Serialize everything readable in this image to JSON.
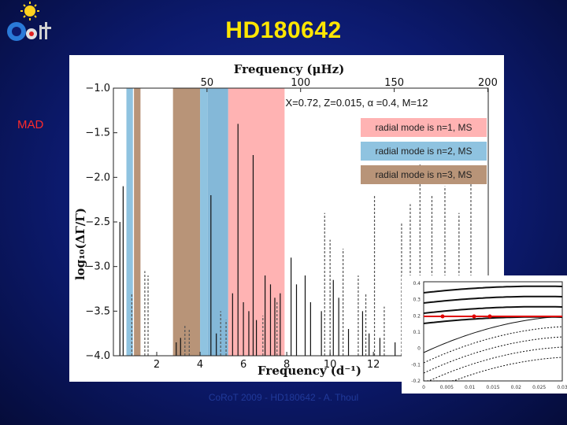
{
  "slide": {
    "title": "HD180642",
    "side_label": "MAD",
    "footer": "CoRoT 2009 - HD180642 - A. Thoul"
  },
  "colors": {
    "title": "#ffe600",
    "side_label": "#ff2a2a",
    "band_tan": "#b89478",
    "band_blue": "#8fc3e0",
    "band_pink": "#ffb3b3",
    "inset_line": "#e00000"
  },
  "chart_data": {
    "type": "bar",
    "annotation": "X=0.72, Z=0.015, α  =0.4, M=12",
    "top_axis": {
      "label": "Frequency (μHz)",
      "ticks": [
        50,
        100,
        150,
        200
      ]
    },
    "xlabel": "Frequency (d⁻¹)",
    "ylabel": "log₁₀(ΔΓ/Γ)",
    "xlim": [
      0,
      17.3
    ],
    "ylim": [
      -4.0,
      -1.0
    ],
    "x_ticks": [
      2,
      4,
      6,
      8,
      10,
      12
    ],
    "y_ticks": [
      -1.0,
      -1.5,
      -2.0,
      -2.5,
      -3.0,
      -3.5,
      -4.0
    ],
    "legend": [
      {
        "label": "radial mode is n=1, MS",
        "color": "#ffb3b3"
      },
      {
        "label": "radial mode is n=2, MS",
        "color": "#8fc3e0"
      },
      {
        "label": "radial mode is n=3, MS",
        "color": "#b89478"
      }
    ],
    "bands": [
      {
        "x0": 0.6,
        "x1": 0.9,
        "color": "#8fc3e0"
      },
      {
        "x0": 0.95,
        "x1": 1.25,
        "color": "#b89478"
      },
      {
        "x0": 2.75,
        "x1": 4.0,
        "color": "#b89478"
      },
      {
        "x0": 4.0,
        "x1": 4.35,
        "color": "#8fc3e0"
      },
      {
        "x0": 4.35,
        "x1": 5.3,
        "color": "#84b8d8"
      },
      {
        "x0": 5.3,
        "x1": 7.9,
        "color": "#ffb3b3"
      }
    ],
    "solid_lines": [
      {
        "x": 0.3,
        "y": -2.5
      },
      {
        "x": 0.45,
        "y": -2.1
      },
      {
        "x": 2.9,
        "y": -3.85
      },
      {
        "x": 3.1,
        "y": -3.8
      },
      {
        "x": 4.5,
        "y": -2.2
      },
      {
        "x": 4.75,
        "y": -3.75
      },
      {
        "x": 5.5,
        "y": -3.3
      },
      {
        "x": 5.75,
        "y": -1.4
      },
      {
        "x": 6.0,
        "y": -3.4
      },
      {
        "x": 6.25,
        "y": -3.5
      },
      {
        "x": 6.45,
        "y": -1.75
      },
      {
        "x": 6.6,
        "y": -3.6
      },
      {
        "x": 7.0,
        "y": -3.1
      },
      {
        "x": 7.25,
        "y": -3.2
      },
      {
        "x": 7.45,
        "y": -3.35
      },
      {
        "x": 7.7,
        "y": -3.3
      },
      {
        "x": 8.2,
        "y": -2.9
      },
      {
        "x": 8.45,
        "y": -3.2
      },
      {
        "x": 8.85,
        "y": -3.1
      },
      {
        "x": 9.1,
        "y": -3.4
      },
      {
        "x": 9.6,
        "y": -3.5
      },
      {
        "x": 10.15,
        "y": -3.15
      },
      {
        "x": 10.4,
        "y": -3.35
      },
      {
        "x": 10.85,
        "y": -3.7
      },
      {
        "x": 11.5,
        "y": -3.5
      },
      {
        "x": 11.8,
        "y": -3.75
      },
      {
        "x": 12.3,
        "y": -3.8
      },
      {
        "x": 13.0,
        "y": -3.85
      }
    ],
    "dashed_lines": [
      {
        "x": 0.85,
        "y": -3.3
      },
      {
        "x": 1.45,
        "y": -3.05
      },
      {
        "x": 1.6,
        "y": -3.1
      },
      {
        "x": 3.3,
        "y": -3.65
      },
      {
        "x": 3.5,
        "y": -3.7
      },
      {
        "x": 4.95,
        "y": -3.5
      },
      {
        "x": 5.2,
        "y": -3.6
      },
      {
        "x": 6.9,
        "y": -3.55
      },
      {
        "x": 7.55,
        "y": -3.4
      },
      {
        "x": 9.75,
        "y": -2.4
      },
      {
        "x": 10.0,
        "y": -2.7
      },
      {
        "x": 10.6,
        "y": -2.8
      },
      {
        "x": 11.3,
        "y": -3.1
      },
      {
        "x": 11.65,
        "y": -3.3
      },
      {
        "x": 12.05,
        "y": -2.2
      },
      {
        "x": 12.5,
        "y": -3.45
      },
      {
        "x": 13.3,
        "y": -2.5
      },
      {
        "x": 13.7,
        "y": -2.3
      },
      {
        "x": 14.15,
        "y": -1.85
      },
      {
        "x": 14.7,
        "y": -2.2
      },
      {
        "x": 15.3,
        "y": -2.1
      },
      {
        "x": 15.95,
        "y": -2.4
      },
      {
        "x": 16.5,
        "y": -2.0
      }
    ]
  },
  "inset": {
    "x_ticks": [
      "0",
      "0.005",
      "0.01",
      "0.015",
      "0.02",
      "0.025",
      "0.03"
    ],
    "y_ticks": [
      "0.4",
      "0.3",
      "0.2",
      "0.1",
      "0",
      "-0.1",
      "-0.2"
    ]
  }
}
